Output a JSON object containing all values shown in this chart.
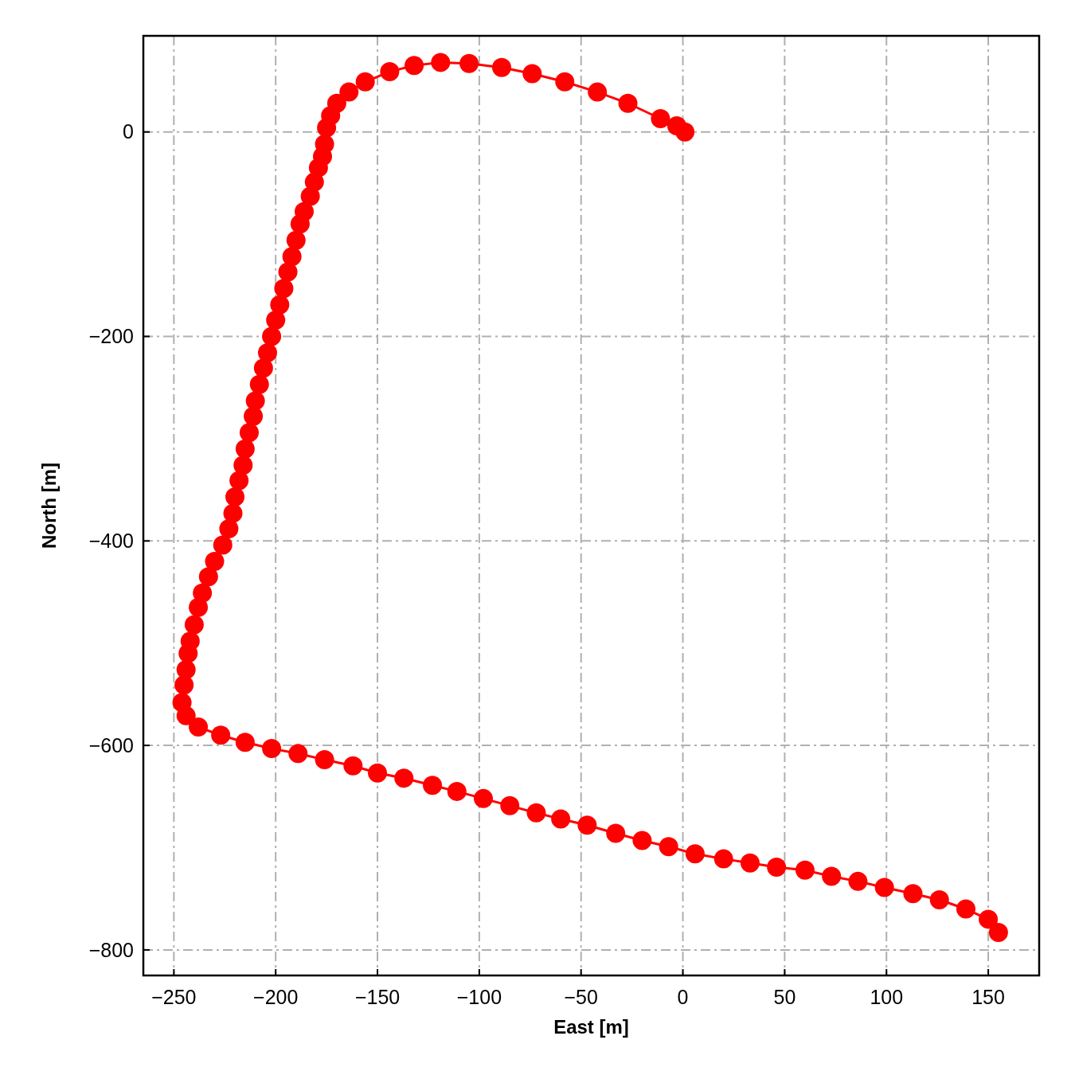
{
  "chart_data": {
    "type": "line",
    "xlabel": "East [m]",
    "ylabel": "North [m]",
    "xlim": [
      -265,
      175
    ],
    "ylim": [
      -825,
      94
    ],
    "xticks": [
      -250,
      -200,
      -150,
      -100,
      -50,
      0,
      50,
      100,
      150
    ],
    "yticks": [
      -800,
      -600,
      -400,
      -200,
      0
    ],
    "grid": true,
    "marker": "circle",
    "line_style": "solid",
    "series": [
      {
        "color": "#ff0000",
        "x": [
          1,
          -3,
          -11,
          -27,
          -42,
          -58,
          -74,
          -89,
          -105,
          -119,
          -132,
          -144,
          -156,
          -164,
          -170,
          -173,
          -175,
          -176,
          -177,
          -179,
          -181,
          -183,
          -186,
          -188,
          -190,
          -192,
          -194,
          -196,
          -198,
          -200,
          -202,
          -204,
          -206,
          -208,
          -210,
          -211,
          -213,
          -215,
          -216,
          -218,
          -220,
          -221,
          -223,
          -226,
          -230,
          -233,
          -236,
          -238,
          -240,
          -242,
          -243,
          -244,
          -245,
          -246,
          -244,
          -238,
          -227,
          -215,
          -202,
          -189,
          -176,
          -162,
          -150,
          -137,
          -123,
          -111,
          -98,
          -85,
          -72,
          -60,
          -47,
          -33,
          -20,
          -7,
          6,
          20,
          33,
          46,
          60,
          73,
          86,
          99,
          113,
          126,
          139,
          150,
          155
        ],
        "values": [
          0,
          6,
          13,
          28,
          39,
          49,
          57,
          63,
          67,
          68,
          65,
          59,
          49,
          39,
          28,
          16,
          4,
          -12,
          -24,
          -35,
          -49,
          -63,
          -78,
          -90,
          -106,
          -122,
          -137,
          -153,
          -169,
          -184,
          -200,
          -216,
          -231,
          -247,
          -263,
          -278,
          -294,
          -310,
          -326,
          -341,
          -357,
          -373,
          -388,
          -404,
          -420,
          -435,
          -451,
          -465,
          -482,
          -498,
          -510,
          -526,
          -541,
          -558,
          -571,
          -582,
          -590,
          -597,
          -603,
          -608,
          -614,
          -620,
          -627,
          -632,
          -639,
          -645,
          -652,
          -659,
          -666,
          -672,
          -678,
          -686,
          -693,
          -699,
          -706,
          -711,
          -715,
          -719,
          -722,
          -728,
          -733,
          -739,
          -745,
          -751,
          -760,
          -770,
          -783
        ]
      }
    ]
  }
}
